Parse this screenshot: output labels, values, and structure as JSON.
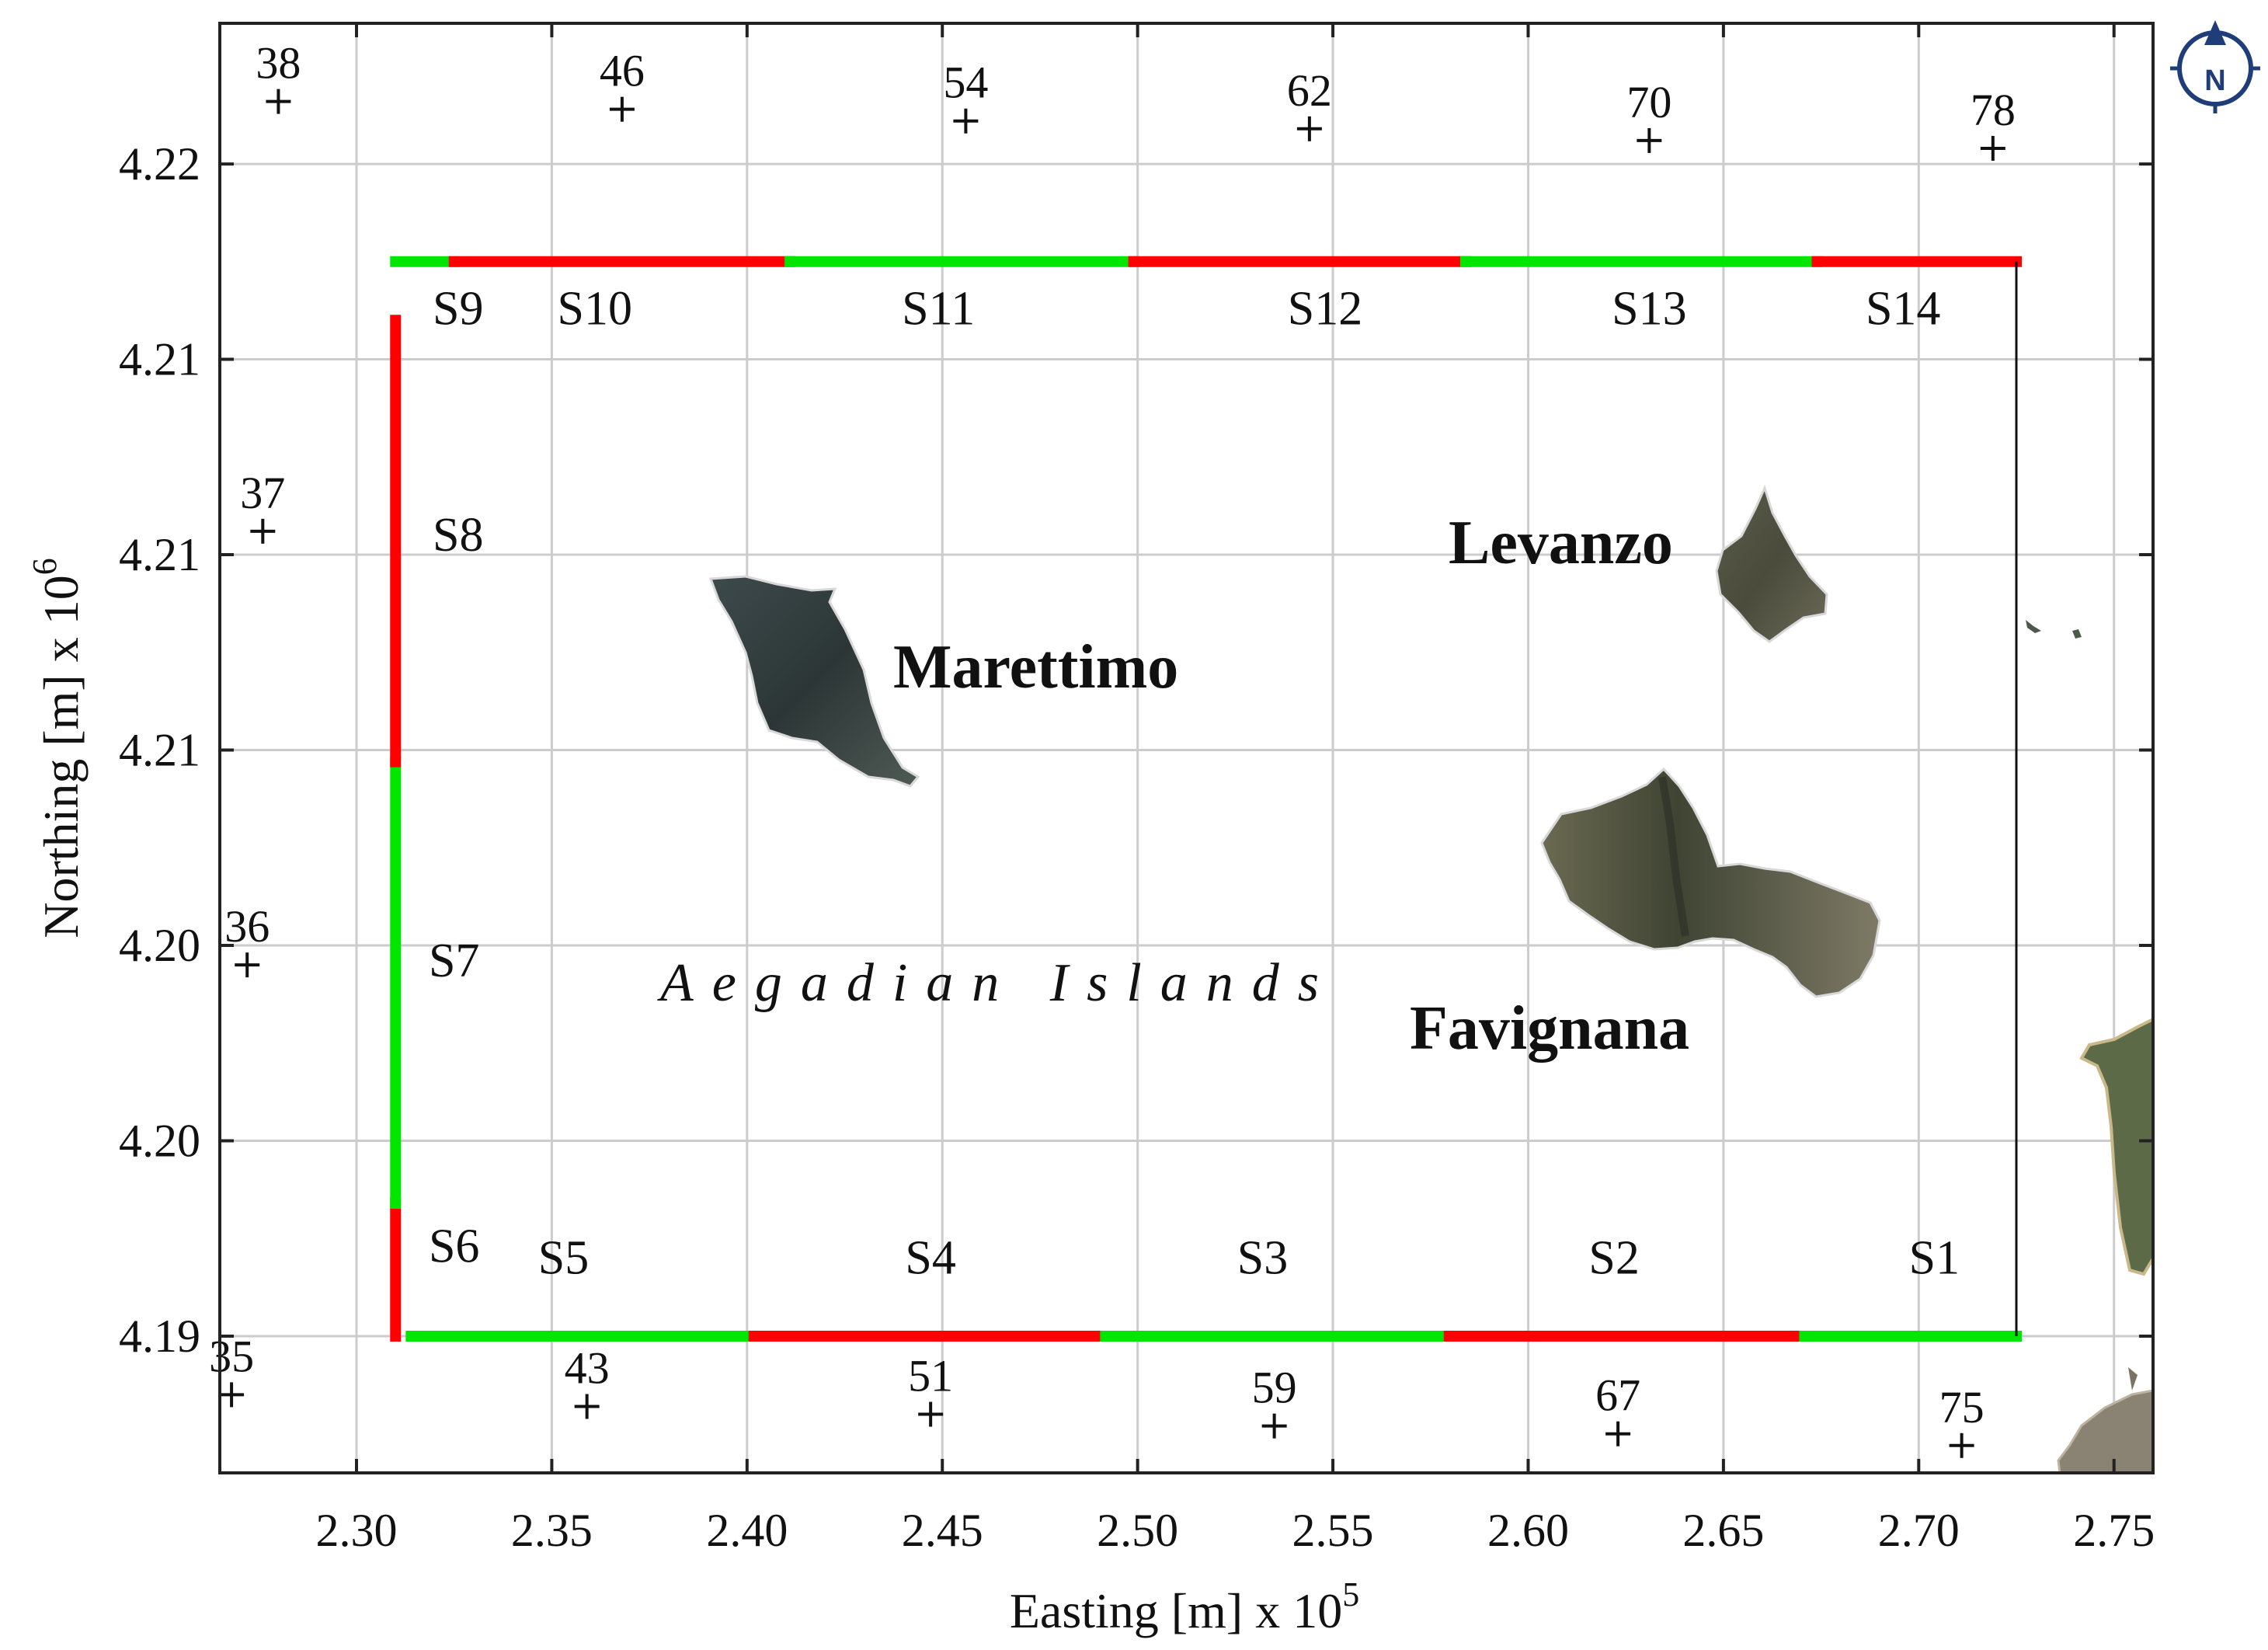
{
  "axes": {
    "xlabel": "Easting [m] x 10",
    "xlabel_exp": "5",
    "ylabel": "Northing [m] x 10",
    "ylabel_exp": "6",
    "xticks": [
      {
        "value": 230000,
        "label": "2.30"
      },
      {
        "value": 235000,
        "label": "2.35"
      },
      {
        "value": 240000,
        "label": "2.40"
      },
      {
        "value": 245000,
        "label": "2.45"
      },
      {
        "value": 250000,
        "label": "2.50"
      },
      {
        "value": 255000,
        "label": "2.55"
      },
      {
        "value": 260000,
        "label": "2.60"
      },
      {
        "value": 265000,
        "label": "2.65"
      },
      {
        "value": 270000,
        "label": "2.70"
      },
      {
        "value": 275000,
        "label": "2.75"
      }
    ],
    "yticks": [
      {
        "value": 4220000,
        "label": "4.22"
      },
      {
        "value": 4215000,
        "label": "4.21"
      },
      {
        "value": 4210000,
        "label": "4.21"
      },
      {
        "value": 4205000,
        "label": "4.21"
      },
      {
        "value": 4200000,
        "label": "4.20"
      },
      {
        "value": 4195000,
        "label": "4.20"
      },
      {
        "value": 4190000,
        "label": "4.19"
      }
    ],
    "xlim": [
      226500,
      276000
    ],
    "ylim": [
      4186500,
      4223600
    ],
    "grid": true
  },
  "colors": {
    "segment_a": "#ff0000",
    "segment_b": "#00e600",
    "frame": "#222222",
    "grid": "#cccccc",
    "compass": "#1f3d78"
  },
  "compass": {
    "label": "N",
    "icon": "north-arrow-icon"
  },
  "region_label": "Aegadian Islands",
  "islands": [
    {
      "name": "Marettimo",
      "label": "Marettimo"
    },
    {
      "name": "Levanzo",
      "label": "Levanzo"
    },
    {
      "name": "Favignana",
      "label": "Favignana"
    }
  ],
  "boundary": {
    "corners": {
      "x_min": 231000,
      "x_max": 272500,
      "y_min": 4190000,
      "y_max": 4217500
    },
    "segments": [
      {
        "id": "S1",
        "side": "south",
        "from": 266800,
        "to": 272500,
        "color": "green"
      },
      {
        "id": "S2",
        "side": "south",
        "from": 257700,
        "to": 266800,
        "color": "red"
      },
      {
        "id": "S3",
        "side": "south",
        "from": 248900,
        "to": 257700,
        "color": "green"
      },
      {
        "id": "S4",
        "side": "south",
        "from": 239900,
        "to": 248900,
        "color": "red"
      },
      {
        "id": "S5",
        "side": "south",
        "from": 231400,
        "to": 239900,
        "color": "green"
      },
      {
        "id": "S6",
        "side": "west",
        "from": 4190000,
        "to": 4193400,
        "color": "red"
      },
      {
        "id": "S7",
        "side": "west",
        "from": 4193400,
        "to": 4204700,
        "color": "green"
      },
      {
        "id": "S8",
        "side": "west",
        "from": 4204700,
        "to": 4216000,
        "color": "red"
      },
      {
        "id": "S9",
        "side": "north",
        "from": 231000,
        "to": 232500,
        "color": "green"
      },
      {
        "id": "S10",
        "side": "north",
        "from": 232500,
        "to": 241100,
        "color": "red"
      },
      {
        "id": "S11",
        "side": "north",
        "from": 241100,
        "to": 249900,
        "color": "green"
      },
      {
        "id": "S12",
        "side": "north",
        "from": 249900,
        "to": 258400,
        "color": "red"
      },
      {
        "id": "S13",
        "side": "north",
        "from": 258400,
        "to": 267400,
        "color": "green"
      },
      {
        "id": "S14",
        "side": "north",
        "from": 267400,
        "to": 272500,
        "color": "red"
      }
    ],
    "segment_labels": [
      {
        "id": "S1",
        "text": "S1",
        "x": 270400,
        "y": 4191600
      },
      {
        "id": "S2",
        "text": "S2",
        "x": 262200,
        "y": 4191600
      },
      {
        "id": "S3",
        "text": "S3",
        "x": 253200,
        "y": 4191600
      },
      {
        "id": "S4",
        "text": "S4",
        "x": 244700,
        "y": 4191600
      },
      {
        "id": "S5",
        "text": "S5",
        "x": 235300,
        "y": 4191600
      },
      {
        "id": "S6",
        "text": "S6",
        "x": 232500,
        "y": 4191900
      },
      {
        "id": "S7",
        "text": "S7",
        "x": 232500,
        "y": 4199200
      },
      {
        "id": "S8",
        "text": "S8",
        "x": 232600,
        "y": 4210100
      },
      {
        "id": "S9",
        "text": "S9",
        "x": 232600,
        "y": 4215900
      },
      {
        "id": "S10",
        "text": "S10",
        "x": 236100,
        "y": 4215900
      },
      {
        "id": "S11",
        "text": "S11",
        "x": 244900,
        "y": 4215900
      },
      {
        "id": "S12",
        "text": "S12",
        "x": 254800,
        "y": 4215900
      },
      {
        "id": "S13",
        "text": "S13",
        "x": 263100,
        "y": 4215900
      },
      {
        "id": "S14",
        "text": "S14",
        "x": 269600,
        "y": 4215900
      }
    ]
  },
  "grid_points": [
    {
      "id": "38",
      "label": "38",
      "x": 228000,
      "y": 4221600
    },
    {
      "id": "46",
      "label": "46",
      "x": 236800,
      "y": 4221400
    },
    {
      "id": "54",
      "label": "54",
      "x": 245600,
      "y": 4221100
    },
    {
      "id": "62",
      "label": "62",
      "x": 254400,
      "y": 4220900
    },
    {
      "id": "70",
      "label": "70",
      "x": 263100,
      "y": 4220600
    },
    {
      "id": "78",
      "label": "78",
      "x": 271900,
      "y": 4220400
    },
    {
      "id": "37",
      "label": "37",
      "x": 227600,
      "y": 4210600
    },
    {
      "id": "36",
      "label": "36",
      "x": 227200,
      "y": 4199500
    },
    {
      "id": "35",
      "label": "35",
      "x": 226800,
      "y": 4188500
    },
    {
      "id": "43",
      "label": "43",
      "x": 235900,
      "y": 4188200
    },
    {
      "id": "51",
      "label": "51",
      "x": 244700,
      "y": 4188000
    },
    {
      "id": "59",
      "label": "59",
      "x": 253500,
      "y": 4187700
    },
    {
      "id": "67",
      "label": "67",
      "x": 262300,
      "y": 4187500
    },
    {
      "id": "75",
      "label": "75",
      "x": 271100,
      "y": 4187200
    }
  ]
}
